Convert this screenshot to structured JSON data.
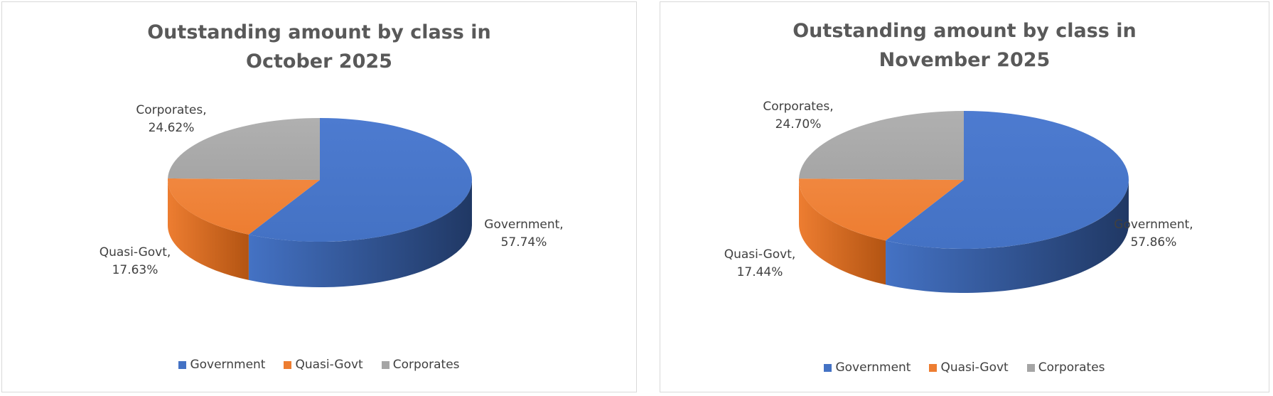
{
  "chart_data": [
    {
      "type": "pie",
      "title": "Outstanding amount by class in October 2025",
      "title_lines": [
        "Outstanding amount by class in",
        "October 2025"
      ],
      "categories": [
        "Government",
        "Quasi-Govt",
        "Corporates"
      ],
      "values": [
        57.74,
        17.63,
        24.62
      ],
      "data_labels": [
        {
          "category": "Government,",
          "value": "57.74%"
        },
        {
          "category": "Quasi-Govt,",
          "value": "17.63%"
        },
        {
          "category": "Corporates,",
          "value": "24.62%"
        }
      ],
      "unit": "%",
      "style": "3d",
      "legend": "bottom"
    },
    {
      "type": "pie",
      "title": "Outstanding amount by class in November 2025",
      "title_lines": [
        "Outstanding amount by class in",
        "November 2025"
      ],
      "categories": [
        "Government",
        "Quasi-Govt",
        "Corporates"
      ],
      "values": [
        57.86,
        17.44,
        24.7
      ],
      "data_labels": [
        {
          "category": "Government,",
          "value": "57.86%"
        },
        {
          "category": "Quasi-Govt,",
          "value": "17.44%"
        },
        {
          "category": "Corporates,",
          "value": "24.70%"
        }
      ],
      "unit": "%",
      "style": "3d",
      "legend": "bottom"
    }
  ],
  "colors": {
    "Government": "#4472c4",
    "Quasi-Govt": "#ed7d31",
    "Corporates": "#a5a5a5"
  }
}
